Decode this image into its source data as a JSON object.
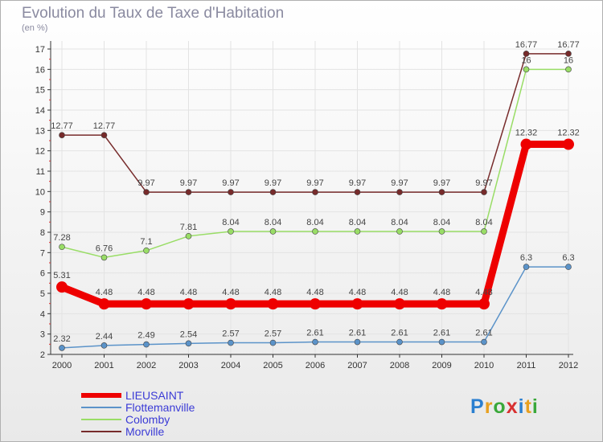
{
  "header": {
    "title": "Evolution du Taux de Taxe d'Habitation",
    "unit": "(en %)"
  },
  "chart_data": {
    "type": "line",
    "title": "Evolution du Taux de Taxe d'Habitation",
    "ylabel": "(en %)",
    "xlabel": "",
    "ylim": [
      2,
      17
    ],
    "yticks": [
      "2",
      "3",
      "4",
      "5",
      "6",
      "7",
      "8",
      "9",
      "10",
      "11",
      "12",
      "13",
      "14",
      "15",
      "16",
      "17"
    ],
    "categories": [
      "2000",
      "2001",
      "2002",
      "2003",
      "2004",
      "2005",
      "2006",
      "2007",
      "2008",
      "2009",
      "2010",
      "2011",
      "2012"
    ],
    "series": [
      {
        "name": "LIEUSAINT",
        "color": "#ee0000",
        "values": [
          5.31,
          4.48,
          4.48,
          4.48,
          4.48,
          4.48,
          4.48,
          4.48,
          4.48,
          4.48,
          4.48,
          12.32,
          12.32
        ],
        "labels": [
          "5.31",
          "4.48",
          "4.48",
          "4.48",
          "4.48",
          "4.48",
          "4.48",
          "4.48",
          "4.48",
          "4.48",
          "4.48",
          "12.32",
          "12.32"
        ]
      },
      {
        "name": "Flottemanville",
        "color": "#5b93c9",
        "values": [
          2.32,
          2.44,
          2.49,
          2.54,
          2.57,
          2.57,
          2.61,
          2.61,
          2.61,
          2.61,
          2.61,
          6.3,
          6.3
        ],
        "labels": [
          "2.32",
          "2.44",
          "2.49",
          "2.54",
          "2.57",
          "2.57",
          "2.61",
          "2.61",
          "2.61",
          "2.61",
          "2.61",
          "6.3",
          "6.3"
        ]
      },
      {
        "name": "Colomby",
        "color": "#99dd66",
        "values": [
          7.28,
          6.76,
          7.1,
          7.81,
          8.04,
          8.04,
          8.04,
          8.04,
          8.04,
          8.04,
          8.04,
          16,
          16
        ],
        "labels": [
          "7.28",
          "6.76",
          "7.1",
          "7.81",
          "8.04",
          "8.04",
          "8.04",
          "8.04",
          "8.04",
          "8.04",
          "8.04",
          "16",
          "16"
        ]
      },
      {
        "name": "Morville",
        "color": "#772b2b",
        "values": [
          12.77,
          12.77,
          9.97,
          9.97,
          9.97,
          9.97,
          9.97,
          9.97,
          9.97,
          9.97,
          9.97,
          16.77,
          16.77
        ],
        "labels": [
          "12.77",
          "12.77",
          "9.97",
          "9.97",
          "9.97",
          "9.97",
          "9.97",
          "9.97",
          "9.97",
          "9.97",
          "9.97",
          "16.77",
          "16.77"
        ]
      }
    ]
  },
  "logo": {
    "text": "Proxiti"
  }
}
